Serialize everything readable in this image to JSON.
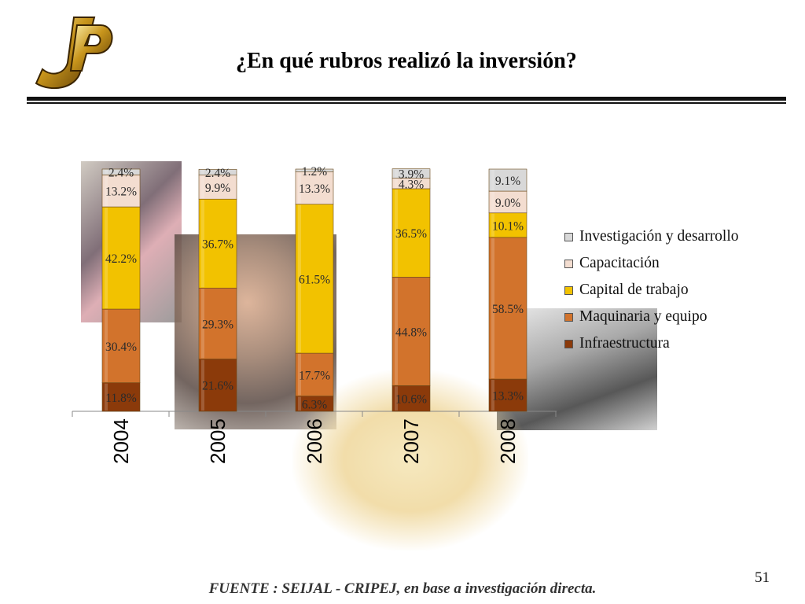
{
  "title": "¿En qué rubros realizó la inversión?",
  "source": "FUENTE : SEIJAL - CRIPEJ, en base a investigación directa.",
  "page_number": "51",
  "logo": {
    "text": "JP",
    "name": "jp-logo"
  },
  "chart_data": {
    "type": "bar",
    "stacked": true,
    "categories": [
      "2004",
      "2005",
      "2006",
      "2007",
      "2008"
    ],
    "series": [
      {
        "name": "Infraestructura",
        "color": "#8b3a0a",
        "values": [
          11.8,
          21.6,
          6.3,
          10.6,
          13.3
        ],
        "labels": [
          "11.8%",
          "21.6%",
          "6.3%",
          "10.6%",
          "13.3%"
        ]
      },
      {
        "name": "Maquinaria y equipo",
        "color": "#d2732c",
        "values": [
          30.4,
          29.3,
          17.7,
          44.8,
          58.5
        ],
        "labels": [
          "30.4%",
          "29.3%",
          "17.7%",
          "44.8%",
          "58.5%"
        ]
      },
      {
        "name": "Capital de trabajo",
        "color": "#f2c200",
        "values": [
          42.2,
          36.7,
          61.5,
          36.5,
          10.1
        ],
        "labels": [
          "42.2%",
          "36.7%",
          "61.5%",
          "36.5%",
          "10.1%"
        ]
      },
      {
        "name": "Capacitación",
        "color": "#f3ddd0",
        "values": [
          13.2,
          9.9,
          13.3,
          4.3,
          9.0
        ],
        "labels": [
          "13.2%",
          "9.9%",
          "13.3%",
          "4.3%",
          "9.0%"
        ]
      },
      {
        "name": "Investigación y desarrollo",
        "color": "#d8d8d8",
        "values": [
          2.4,
          2.4,
          1.2,
          3.9,
          9.1
        ],
        "labels": [
          "2.4%",
          "2.4%",
          "1.2%",
          "3.9%",
          "9.1%"
        ]
      }
    ],
    "ylim": [
      0,
      100
    ],
    "legend_position": "right",
    "grid": false
  }
}
